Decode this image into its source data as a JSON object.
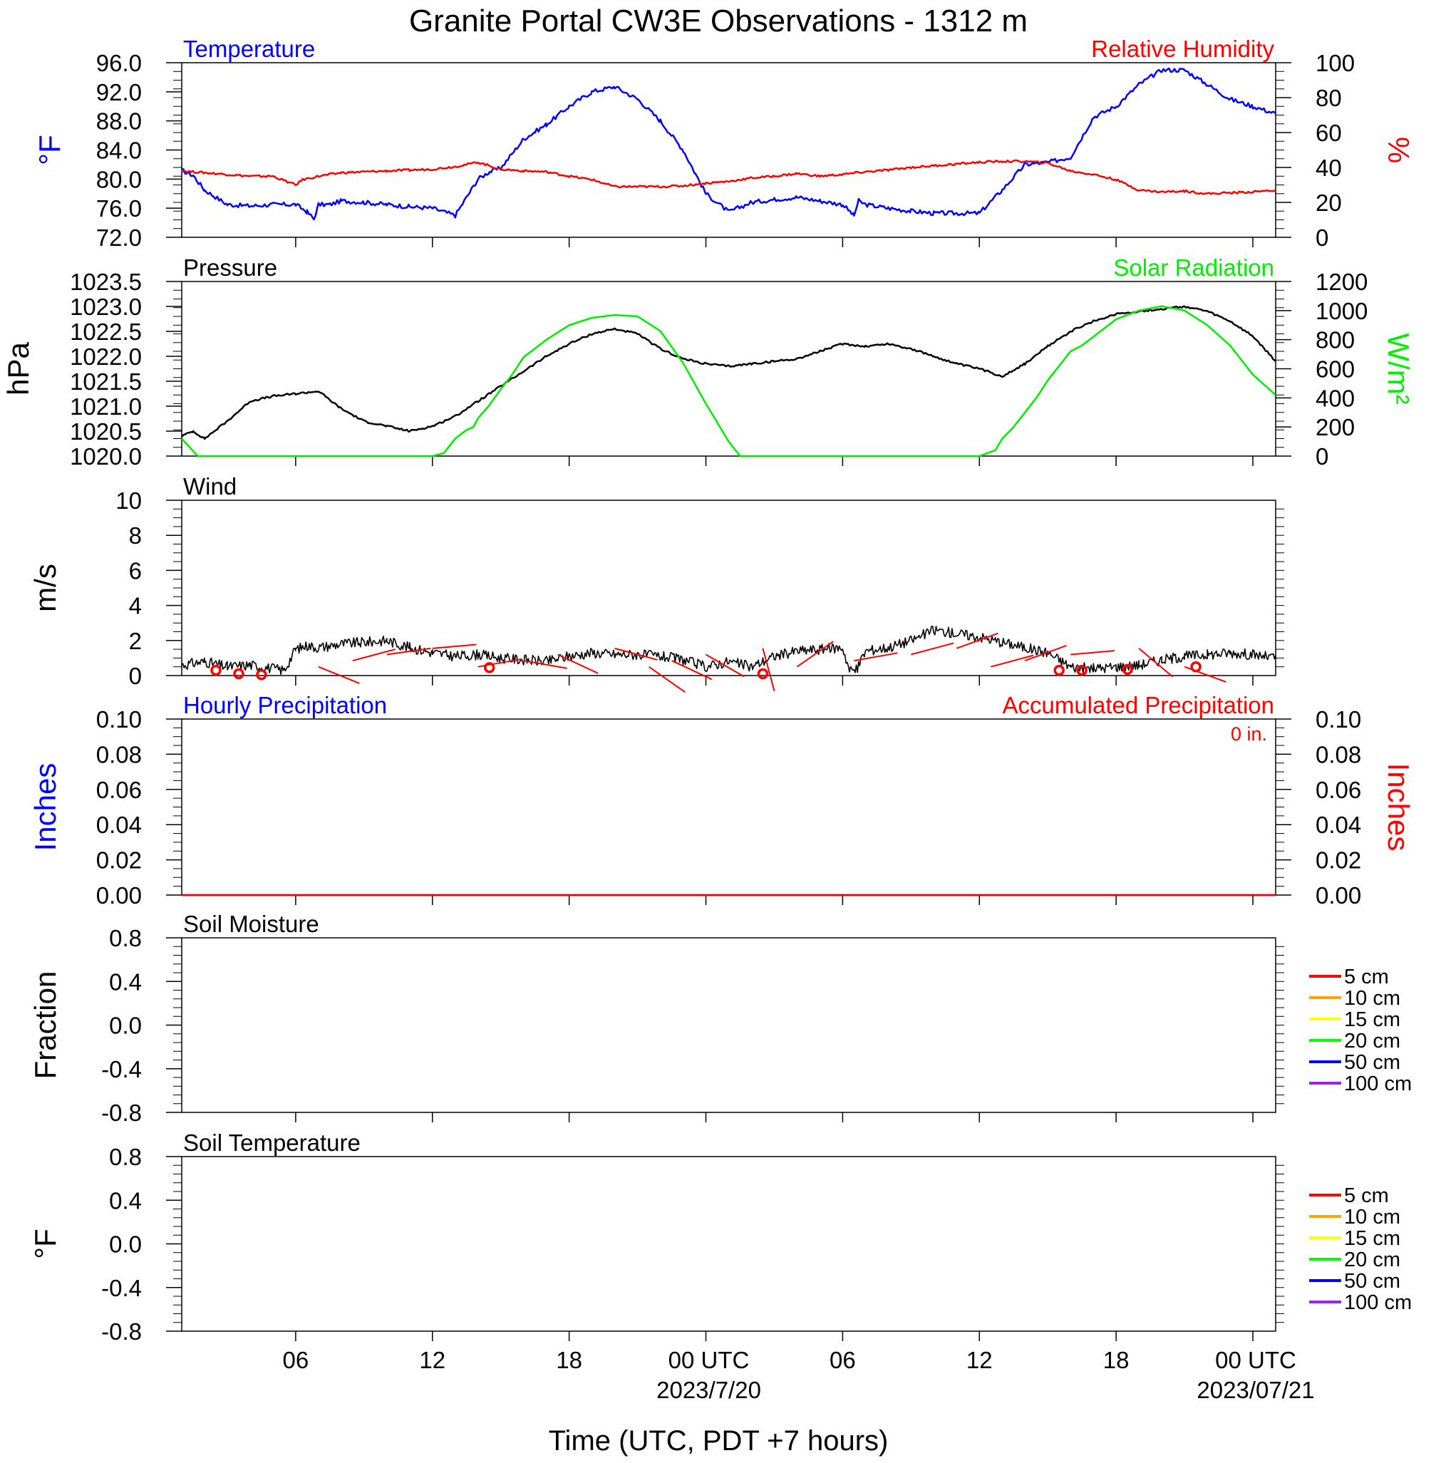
{
  "page": {
    "title": "Granite Portal CW3E Observations - 1312 m",
    "xlabel": "Time (UTC, PDT +7 hours)",
    "x_range_hours": [
      -5,
      43
    ],
    "x_ticks": [
      {
        "h": 0,
        "label": "06",
        "sub": ""
      },
      {
        "h": 6,
        "label": "12",
        "sub": ""
      },
      {
        "h": 12,
        "label": "18",
        "sub": ""
      },
      {
        "h": 18,
        "label": "00 UTC",
        "sub": "2023/7/20"
      },
      {
        "h": 24,
        "label": "06",
        "sub": ""
      },
      {
        "h": 30,
        "label": "12",
        "sub": ""
      },
      {
        "h": 36,
        "label": "18",
        "sub": ""
      },
      {
        "h": 42,
        "label": "00 UTC",
        "sub": "2023/07/21"
      }
    ]
  },
  "colors": {
    "temperature": "#0000ff",
    "humidity": "#ff0000",
    "pressure": "#000000",
    "solar": "#00ee00",
    "wind": "#000000",
    "wind_barb": "#ff0000",
    "hourly_precip": "#0000ff",
    "accum_precip": "#ff0000"
  },
  "chart_data": [
    {
      "type": "line",
      "panel": "temperature_humidity",
      "title_left": "Temperature",
      "title_right": "Relative Humidity",
      "ylabel_left": "°F",
      "ylabel_right": "%",
      "ylim_left": [
        72,
        96
      ],
      "ylim_right": [
        0,
        100
      ],
      "yticks_left": [
        "96.0",
        "92.0",
        "88.0",
        "84.0",
        "80.0",
        "76.0",
        "72.0"
      ],
      "yticks_right": [
        "100",
        "80",
        "60",
        "40",
        "20",
        "0"
      ],
      "series": [
        {
          "key": "temperature",
          "axis": "left",
          "x": [
            -5,
            -4.5,
            -4,
            -3,
            -2,
            -1,
            0,
            0.5,
            0.8,
            1,
            1.5,
            2,
            3,
            4,
            5,
            6,
            7,
            8,
            8.5,
            9,
            10,
            10.5,
            11,
            12,
            13,
            14,
            15,
            16,
            17,
            18,
            19,
            20,
            21,
            22,
            23,
            24,
            24.5,
            24.7,
            25,
            26,
            27,
            28,
            29,
            30,
            31,
            32,
            33,
            34,
            35,
            36,
            37,
            38,
            39,
            40,
            41,
            42,
            43
          ],
          "y": [
            81.2,
            80.5,
            78.5,
            76.5,
            76.3,
            76.5,
            76.5,
            75.5,
            74.5,
            76.5,
            76.5,
            77,
            76.8,
            76.5,
            76.2,
            76,
            75,
            80,
            81,
            81.5,
            85.5,
            86.5,
            87.5,
            90,
            92,
            92.7,
            91,
            88,
            84,
            78,
            75.5,
            76.8,
            77.2,
            77.5,
            77,
            76.5,
            75,
            77,
            76.5,
            76,
            75.6,
            75.3,
            75.3,
            75.3,
            78.5,
            82,
            82.3,
            83,
            88.5,
            90,
            93,
            95,
            95,
            93,
            91,
            90,
            89
          ]
        },
        {
          "key": "humidity",
          "axis": "right",
          "x": [
            -5,
            -4,
            -3,
            -2,
            -1,
            0,
            0.3,
            1,
            2,
            3,
            4,
            5,
            6,
            7,
            8,
            9,
            10,
            11,
            12,
            13,
            14,
            15,
            16,
            17,
            18,
            19,
            20,
            21,
            22,
            23,
            24,
            25,
            26,
            27,
            28,
            29,
            30,
            31,
            32,
            33,
            34,
            35,
            36,
            37,
            38,
            39,
            40,
            41,
            42,
            43
          ],
          "y": [
            38,
            37,
            36,
            35,
            35,
            30,
            33,
            35,
            37,
            37.5,
            38,
            38.5,
            39,
            40.5,
            43,
            39,
            38,
            37.5,
            35,
            33,
            29,
            29,
            29,
            29.5,
            31,
            32,
            34,
            35,
            36.5,
            35,
            36,
            37.5,
            38.5,
            40,
            41,
            42,
            43,
            43.5,
            43.5,
            42.5,
            38,
            36,
            33,
            27,
            26,
            26.5,
            25,
            25.5,
            26,
            27
          ]
        }
      ]
    },
    {
      "type": "line",
      "panel": "pressure_solar",
      "title_left": "Pressure",
      "title_right": "Solar Radiation",
      "ylabel_left": "hPa",
      "ylabel_right": "W/m²",
      "ylim_left": [
        1020,
        1023.5
      ],
      "ylim_right": [
        0,
        1200
      ],
      "yticks_left": [
        "1023.5",
        "1023.0",
        "1022.5",
        "1022.0",
        "1021.5",
        "1021.0",
        "1020.5",
        "1020.0"
      ],
      "yticks_right": [
        "1200",
        "1000",
        "800",
        "600",
        "400",
        "200",
        "0"
      ],
      "series": [
        {
          "key": "pressure",
          "axis": "left",
          "x": [
            -5,
            -4.5,
            -4,
            -3,
            -2,
            -1,
            0,
            1,
            2,
            3,
            4,
            5,
            6,
            7,
            8,
            9,
            10,
            11,
            12,
            13,
            14,
            15,
            16,
            17,
            18,
            19,
            20,
            21,
            22,
            23,
            24,
            25,
            26,
            27,
            28,
            29,
            30,
            31,
            32,
            33,
            34,
            35,
            36,
            37,
            38,
            39,
            40,
            41,
            42,
            43
          ],
          "y": [
            1020.4,
            1020.5,
            1020.35,
            1020.7,
            1021.1,
            1021.2,
            1021.25,
            1021.3,
            1020.95,
            1020.7,
            1020.6,
            1020.5,
            1020.6,
            1020.8,
            1021.1,
            1021.4,
            1021.7,
            1022.0,
            1022.25,
            1022.45,
            1022.55,
            1022.45,
            1022.15,
            1021.95,
            1021.85,
            1021.8,
            1021.85,
            1021.9,
            1021.95,
            1022.1,
            1022.25,
            1022.2,
            1022.25,
            1022.15,
            1022.0,
            1021.85,
            1021.75,
            1021.6,
            1021.85,
            1022.2,
            1022.5,
            1022.7,
            1022.85,
            1022.9,
            1022.95,
            1023.0,
            1022.9,
            1022.7,
            1022.4,
            1021.9
          ]
        },
        {
          "key": "solar",
          "axis": "right",
          "x": [
            -5,
            -4.3,
            -3,
            -1,
            1,
            3,
            5,
            6,
            6.5,
            7,
            7.5,
            7.8,
            8,
            8.5,
            9,
            9.5,
            10,
            11,
            12,
            13,
            14,
            15,
            16,
            17,
            18,
            19,
            19.5,
            21,
            23,
            25,
            27,
            29,
            30,
            30.7,
            31,
            31.5,
            32,
            32.5,
            33,
            33.5,
            34,
            34.5,
            35,
            35.5,
            36,
            37,
            38,
            39,
            40,
            41,
            42,
            43
          ],
          "y": [
            120,
            0,
            0,
            0,
            0,
            0,
            0,
            0,
            20,
            120,
            180,
            200,
            260,
            350,
            460,
            560,
            680,
            800,
            900,
            950,
            970,
            960,
            860,
            640,
            360,
            100,
            0,
            0,
            0,
            0,
            0,
            0,
            0,
            40,
            120,
            200,
            300,
            400,
            520,
            620,
            720,
            760,
            820,
            880,
            940,
            1000,
            1030,
            1000,
            900,
            760,
            560,
            420
          ]
        }
      ]
    },
    {
      "type": "line",
      "panel": "wind",
      "title_left": "Wind",
      "ylabel_left": "m/s",
      "ylim_left": [
        0,
        10
      ],
      "yticks_left": [
        "10",
        "8",
        "6",
        "4",
        "2",
        "0"
      ],
      "series": [
        {
          "key": "wind",
          "axis": "left",
          "x": [
            -5,
            -4,
            -3,
            -2,
            -1,
            -0.5,
            0,
            0.5,
            1,
            2,
            3,
            4,
            5,
            6,
            7,
            8,
            9,
            10,
            11,
            12,
            13,
            14,
            15,
            16,
            17,
            18,
            19,
            20,
            21,
            22,
            23,
            24,
            24.3,
            24.6,
            25,
            26,
            27,
            28,
            29,
            30,
            31,
            32,
            33,
            34,
            35,
            36,
            37,
            38,
            39,
            40,
            41,
            42,
            43
          ],
          "y": [
            0.6,
            0.8,
            0.5,
            0.6,
            0.4,
            0.3,
            1.5,
            1.7,
            1.6,
            1.8,
            1.9,
            2.0,
            1.6,
            1.3,
            1.1,
            1.2,
            1.0,
            0.9,
            0.8,
            1.1,
            1.3,
            1.2,
            1.2,
            1.1,
            0.9,
            0.5,
            0.8,
            0.5,
            1.1,
            1.4,
            1.5,
            1.6,
            0.3,
            0.3,
            1.4,
            1.6,
            2.0,
            2.6,
            2.4,
            2.2,
            1.9,
            1.6,
            1.3,
            0.5,
            0.4,
            0.5,
            0.6,
            0.9,
            1.1,
            1.2,
            1.3,
            1.2,
            1.0
          ]
        },
        {
          "key": "calm",
          "axis": "left",
          "x": [
            -3.5,
            -2.5,
            -1.5,
            8.5,
            20.5,
            33.5,
            34.5,
            36.5,
            39.5
          ],
          "y": [
            0.3,
            0.1,
            0.05,
            0.45,
            0.1,
            0.3,
            0.3,
            0.35,
            0.5
          ]
        }
      ]
    },
    {
      "type": "line",
      "panel": "precipitation",
      "title_left": "Hourly Precipitation",
      "title_right": "Accumulated Precipitation",
      "annotation": "0 in.",
      "ylabel_left": "Inches",
      "ylabel_right": "Inches",
      "ylim_left": [
        0,
        0.1
      ],
      "ylim_right": [
        0,
        0.1
      ],
      "yticks_left": [
        "0.10",
        "0.08",
        "0.06",
        "0.04",
        "0.02",
        "0.00"
      ],
      "yticks_right": [
        "0.10",
        "0.08",
        "0.06",
        "0.04",
        "0.02",
        "0.00"
      ],
      "series": [
        {
          "key": "hourly_precip",
          "axis": "left",
          "x": [
            -5,
            43
          ],
          "y": [
            0,
            0
          ]
        },
        {
          "key": "accum_precip",
          "axis": "right",
          "x": [
            -5,
            43
          ],
          "y": [
            0,
            0
          ]
        }
      ]
    },
    {
      "type": "line",
      "panel": "soil_moisture",
      "title_left": "Soil Moisture",
      "ylabel_left": "Fraction",
      "ylim_left": [
        -1,
        1
      ],
      "yticks_left": [
        "0.8",
        "0.4",
        "0.0",
        "-0.4",
        "-0.8"
      ],
      "legend": [
        {
          "label": "5 cm",
          "color": "#ff0000"
        },
        {
          "label": "10 cm",
          "color": "#ffa500"
        },
        {
          "label": "15 cm",
          "color": "#ffff00"
        },
        {
          "label": "20 cm",
          "color": "#00ff00"
        },
        {
          "label": "50 cm",
          "color": "#0000ff"
        },
        {
          "label": "100 cm",
          "color": "#a020f0"
        }
      ],
      "series": []
    },
    {
      "type": "line",
      "panel": "soil_temperature",
      "title_left": "Soil Temperature",
      "ylabel_left": "°F",
      "ylim_left": [
        -1,
        1
      ],
      "yticks_left": [
        "0.8",
        "0.4",
        "0.0",
        "-0.4",
        "-0.8"
      ],
      "legend": [
        {
          "label": "5 cm",
          "color": "#ff0000"
        },
        {
          "label": "10 cm",
          "color": "#ffa500"
        },
        {
          "label": "15 cm",
          "color": "#ffff00"
        },
        {
          "label": "20 cm",
          "color": "#00ff00"
        },
        {
          "label": "50 cm",
          "color": "#0000ff"
        },
        {
          "label": "100 cm",
          "color": "#a020f0"
        }
      ],
      "series": []
    }
  ]
}
